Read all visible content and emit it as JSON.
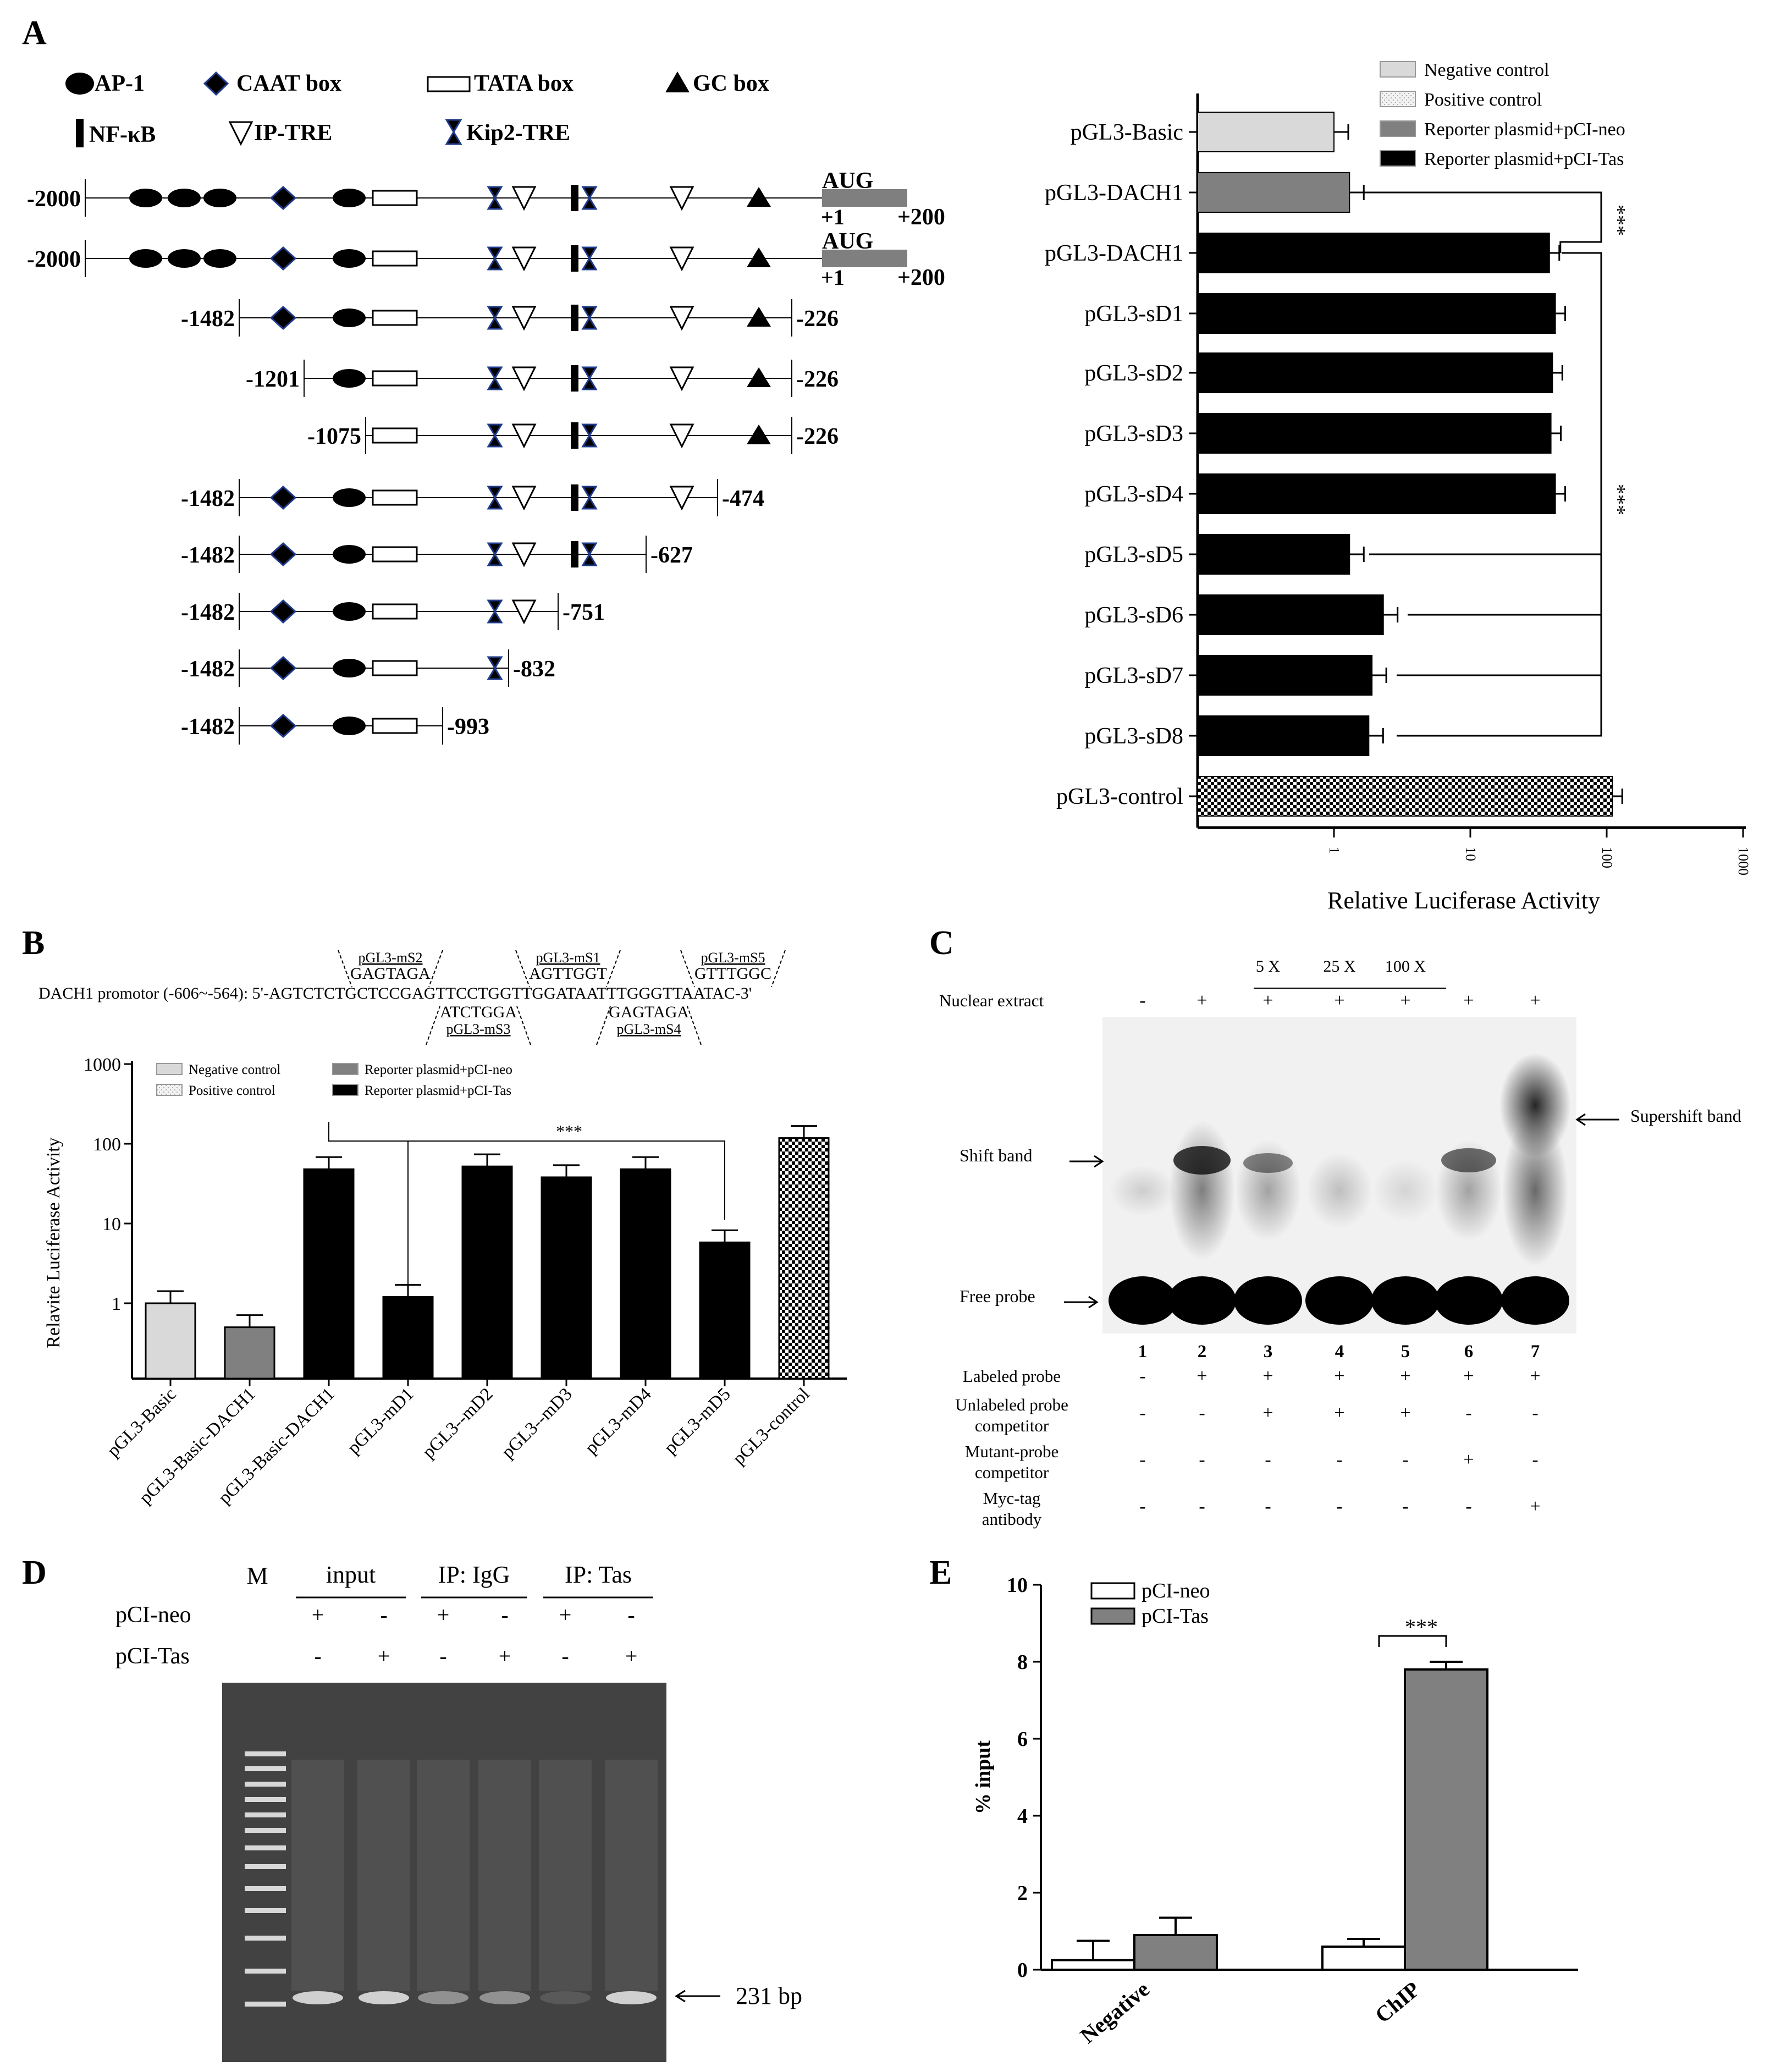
{
  "panels": {
    "A": "A",
    "B": "B",
    "C": "C",
    "D": "D",
    "E": "E"
  },
  "colors": {
    "negative": "#d9d9d9",
    "positive_pattern": "#000000",
    "neo": "#808080",
    "tas": "#000000",
    "gel_bg": "#424242",
    "band": "#e0e0e0"
  },
  "panelA": {
    "legend_elements": {
      "ap1": "AP-1",
      "caat": "CAAT box",
      "tata": "TATA  box",
      "gc": "GC box",
      "nfkb": "NF-κB",
      "iptre": "IP-TRE",
      "kip2": "Kip2-TRE"
    },
    "construct_labels": [
      {
        "left": "-2000",
        "right": "+200",
        "aug": "AUG",
        "plus1": "+1"
      },
      {
        "left": "-2000",
        "right": "+200",
        "aug": "AUG",
        "plus1": "+1"
      },
      {
        "left": "-1482",
        "right": "-226"
      },
      {
        "left": "-1201",
        "right": "-226"
      },
      {
        "left": "-1075",
        "right": "-226"
      },
      {
        "left": "-1482",
        "right": "-474"
      },
      {
        "left": "-1482",
        "right": "-627"
      },
      {
        "left": "-1482",
        "right": "-751"
      },
      {
        "left": "-1482",
        "right": "-832"
      },
      {
        "left": "-1482",
        "right": "-993"
      }
    ],
    "chart_data": {
      "type": "bar",
      "orientation": "horizontal",
      "scale": "log",
      "xlabel": "Relative Luciferase Activity",
      "ticks": [
        "1",
        "10",
        "100",
        "1000"
      ],
      "categories": [
        "pGL3-Basic",
        "pGL3-DACH1",
        "pGL3-DACH1",
        "pGL3-sD1",
        "pGL3-sD2",
        "pGL3-sD3",
        "pGL3-sD4",
        "pGL3-sD5",
        "pGL3-sD6",
        "pGL3-sD7",
        "pGL3-sD8",
        "pGL3-control"
      ],
      "values": [
        1.0,
        1.3,
        38,
        42,
        40,
        39,
        42,
        1.3,
        2.3,
        1.9,
        1.8,
        110
      ],
      "groups": [
        "negative",
        "neo",
        "tas",
        "tas",
        "tas",
        "tas",
        "tas",
        "tas",
        "tas",
        "tas",
        "tas",
        "positive"
      ],
      "legend": [
        "Negative control",
        "Positive control",
        "Reporter plasmid+pCI-neo",
        "Reporter plasmid+pCI-Tas"
      ],
      "annotations": [
        "***",
        "***"
      ]
    }
  },
  "panelB": {
    "promoter_text": "DACH1 promotor (-606~-564): 5'-AGTCTCTGCTCCGAGTTCCTGGTTGGATAATTTGGGTTAATAC-3'",
    "mutations": [
      {
        "name": "pGL3-mS2",
        "seq": "GAGTAGA"
      },
      {
        "name": "pGL3-mS1",
        "seq": "AGTTGGT"
      },
      {
        "name": "pGL3-mS5",
        "seq": "GTTTGGC"
      },
      {
        "name": "pGL3-mS3",
        "seq": "ATCTGGA"
      },
      {
        "name": "pGL3-mS4",
        "seq": "GAGTAGA"
      }
    ],
    "chart_data": {
      "type": "bar",
      "scale": "log",
      "ylabel": "Relavite Luciferase Activity",
      "yticks": [
        "1000",
        "100",
        "10",
        "1"
      ],
      "categories": [
        "pGL3-Basic",
        "pGL3-Basic-DACH1",
        "pGL3-Basic-DACH1",
        "pGL3-mD1",
        "pGL3--mD2",
        "pGL3--mD3",
        "pGL3-mD4",
        "pGL3-mD5",
        "pGL3-control"
      ],
      "values": [
        1.0,
        0.5,
        48,
        1.2,
        52,
        38,
        48,
        5.8,
        118
      ],
      "groups": [
        "negative",
        "neo",
        "tas",
        "tas",
        "tas",
        "tas",
        "tas",
        "tas",
        "positive"
      ],
      "legend": [
        "Negative control",
        "Positive control",
        "Reporter plasmid+pCI-neo",
        "Reporter plasmid+pCI-Tas"
      ],
      "annotations": [
        "***"
      ]
    }
  },
  "panelC": {
    "concentrations": [
      "5 X",
      "25 X",
      "100 X"
    ],
    "nuclear_extract": {
      "label": "Nuclear extract",
      "values": [
        "-",
        "+",
        "+",
        "+",
        "+",
        "+",
        "+"
      ]
    },
    "band_labels": {
      "shift": "Shift band",
      "free": "Free probe",
      "supershift": "Supershift band"
    },
    "lanes": [
      "1",
      "2",
      "3",
      "4",
      "5",
      "6",
      "7"
    ],
    "rows": [
      {
        "label": "Labeled probe",
        "values": [
          "-",
          "+",
          "+",
          "+",
          "+",
          "+",
          "+"
        ]
      },
      {
        "label": "Unlabeled probe\ncompetitor",
        "values": [
          "-",
          "-",
          "+",
          "+",
          "+",
          "-",
          "-"
        ]
      },
      {
        "label": "Mutant-probe\ncompetitor",
        "values": [
          "-",
          "-",
          "-",
          "-",
          "-",
          "+",
          "-"
        ]
      },
      {
        "label": "Myc-tag\nantibody",
        "values": [
          "-",
          "-",
          "-",
          "-",
          "-",
          "-",
          "+"
        ]
      }
    ]
  },
  "panelD": {
    "marker": "M",
    "groups": [
      "input",
      "IP: IgG",
      "IP: Tas"
    ],
    "rows": [
      {
        "label": "pCI-neo",
        "values": [
          "+",
          "-",
          "+",
          "-",
          "+",
          "-"
        ]
      },
      {
        "label": "pCI-Tas",
        "values": [
          "-",
          "+",
          "-",
          "+",
          "-",
          "+"
        ]
      }
    ],
    "band_label": "231 bp"
  },
  "panelE": {
    "chart_data": {
      "type": "bar",
      "ylabel": "% input",
      "ylim": [
        0,
        10
      ],
      "yticks": [
        "0",
        "2",
        "4",
        "6",
        "8",
        "10"
      ],
      "categories": [
        "Negative",
        "ChIP"
      ],
      "series": [
        {
          "name": "pCI-neo",
          "values": [
            0.25,
            0.6
          ],
          "errors": [
            0.5,
            0.2
          ]
        },
        {
          "name": "pCI-Tas",
          "values": [
            0.9,
            7.8
          ],
          "errors": [
            0.45,
            0.2
          ]
        }
      ],
      "annotations": [
        "***"
      ]
    }
  }
}
